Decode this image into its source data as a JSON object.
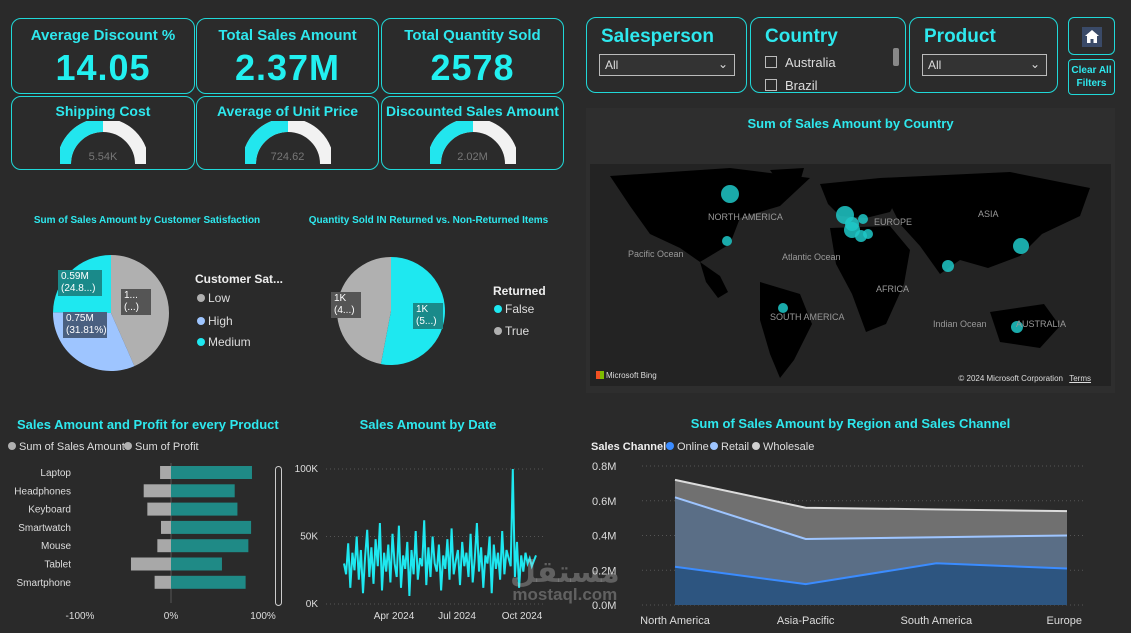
{
  "kpis": [
    {
      "title": "Average Discount %",
      "value": "14.05"
    },
    {
      "title": "Total Sales Amount",
      "value": "2.37M"
    },
    {
      "title": "Total Quantity Sold",
      "value": "2578"
    }
  ],
  "gauges": [
    {
      "title": "Shipping Cost",
      "label": "5.54K",
      "fill": 0.55
    },
    {
      "title": "Average of Unit Price",
      "label": "724.62",
      "fill": 0.55
    },
    {
      "title": "Discounted Sales Amount",
      "label": "2.02M",
      "fill": 0.55
    }
  ],
  "slicers": {
    "salesperson": {
      "title": "Salesperson",
      "value": "All"
    },
    "country": {
      "title": "Country",
      "options": [
        "Australia",
        "Brazil"
      ]
    },
    "product": {
      "title": "Product",
      "value": "All"
    }
  },
  "buttons": {
    "clear": "Clear All Filters"
  },
  "map": {
    "title": "Sum of Sales Amount by Country",
    "labels": [
      "NORTH AMERICA",
      "EUROPE",
      "ASIA",
      "Pacific Ocean",
      "Atlantic Ocean",
      "AFRICA",
      "SOUTH AMERICA",
      "Indian Ocean",
      "AUSTRALIA"
    ],
    "brand": "Microsoft Bing",
    "copyright": "© 2024 Microsoft Corporation",
    "terms": "Terms"
  },
  "colors": {
    "accent": "#20d8d8",
    "low": "#b0b0b0",
    "high": "#9ec5ff",
    "medium": "#1ee8f0",
    "wholesale": "#cfcfcf"
  },
  "chart_data": [
    {
      "type": "pie",
      "title": "Sum of Sales Amount by Customer Satisfaction",
      "legend_title": "Customer Sat...",
      "slices": [
        {
          "name": "Low",
          "label": "1... (...)",
          "value": 43.39
        },
        {
          "name": "High",
          "label": "0.75M (31.81%)",
          "value": 31.81
        },
        {
          "name": "Medium",
          "label": "0.59M (24.8...)",
          "value": 24.8
        }
      ]
    },
    {
      "type": "pie",
      "title": "Quantity Sold IN Returned vs. Non-Returned Items",
      "legend_title": "Returned",
      "slices": [
        {
          "name": "False",
          "label": "1K (5...)",
          "value": 53
        },
        {
          "name": "True",
          "label": "1K (4...)",
          "value": 47
        }
      ]
    },
    {
      "type": "bar",
      "title": "Sales Amount and Profit for every Product",
      "series_names": [
        "Sum of Sales Amount",
        "Sum of Profit"
      ],
      "categories": [
        "Laptop",
        "Headphones",
        "Keyboard",
        "Smartwatch",
        "Mouse",
        "Tablet",
        "Smartphone"
      ],
      "sales_pct": [
        89,
        70,
        73,
        88,
        85,
        56,
        82
      ],
      "profit_pct": [
        -12,
        -30,
        -26,
        -11,
        -15,
        -44,
        -18
      ],
      "xticks": [
        "-100%",
        "0%",
        "100%"
      ]
    },
    {
      "type": "line",
      "title": "Sales Amount by Date",
      "yticks": [
        "100K",
        "50K",
        "0K"
      ],
      "xticks": [
        "Apr 2024",
        "Jul 2024",
        "Oct 2024"
      ],
      "values": [
        30,
        22,
        45,
        12,
        38,
        25,
        50,
        18,
        40,
        8,
        35,
        55,
        20,
        42,
        15,
        48,
        28,
        60,
        10,
        38,
        24,
        44,
        16,
        52,
        30,
        20,
        58,
        12,
        36,
        26,
        46,
        6,
        40,
        22,
        54,
        18,
        34,
        28,
        62,
        14,
        42,
        20,
        50,
        30,
        24,
        44,
        10,
        36,
        26,
        48,
        18,
        56,
        22,
        32,
        40,
        14,
        46,
        28,
        38,
        20,
        52,
        16,
        34,
        60,
        24,
        42,
        12,
        36,
        30,
        50,
        8,
        44,
        26,
        38,
        18,
        54,
        22,
        40,
        34,
        28,
        100,
        20,
        46,
        12,
        36,
        24,
        38,
        30,
        34,
        28,
        32,
        36
      ]
    },
    {
      "type": "area",
      "title": "Sum of Sales Amount by Region and Sales Channel",
      "legend_title": "Sales Channel",
      "categories": [
        "North America",
        "Asia-Pacific",
        "South America",
        "Europe"
      ],
      "series": [
        {
          "name": "Online",
          "values": [
            0.22,
            0.12,
            0.24,
            0.21
          ]
        },
        {
          "name": "Retail",
          "values": [
            0.62,
            0.38,
            0.39,
            0.4
          ]
        },
        {
          "name": "Wholesale",
          "values": [
            0.72,
            0.56,
            0.55,
            0.54
          ]
        }
      ],
      "yticks": [
        "0.8M",
        "0.6M",
        "0.4M",
        "0.2M",
        "0.0M"
      ],
      "ylim": [
        0,
        0.8
      ]
    }
  ],
  "watermark": {
    "text": "mostaql.com"
  }
}
